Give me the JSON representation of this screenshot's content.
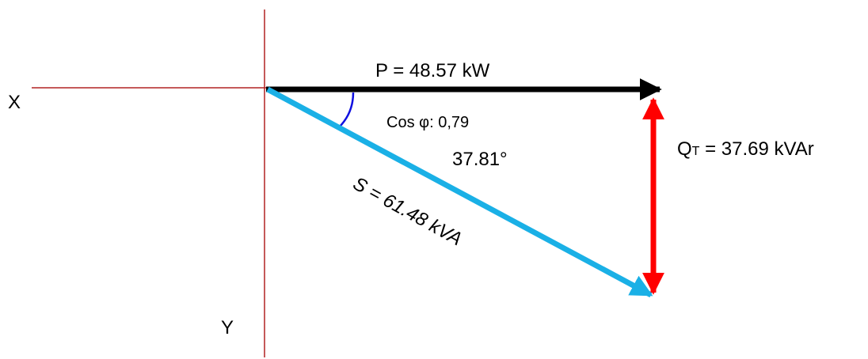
{
  "diagram": {
    "axis_x_label": "X",
    "axis_y_label": "Y",
    "active_power_label": "P = 48.57 kW",
    "power_factor_label": "Cos φ: 0,79",
    "angle_label": "37.81°",
    "apparent_power_label": "S = 61.48 kVA",
    "reactive_power_prefix": "Q",
    "reactive_power_subscript": "T",
    "reactive_power_value": " = 37.69 kVAr"
  },
  "colors": {
    "axes": "#b22222",
    "active_power": "#000000",
    "apparent_power": "#1ab0e6",
    "reactive_power": "#ff0000",
    "angle_arc": "#1010e0"
  }
}
